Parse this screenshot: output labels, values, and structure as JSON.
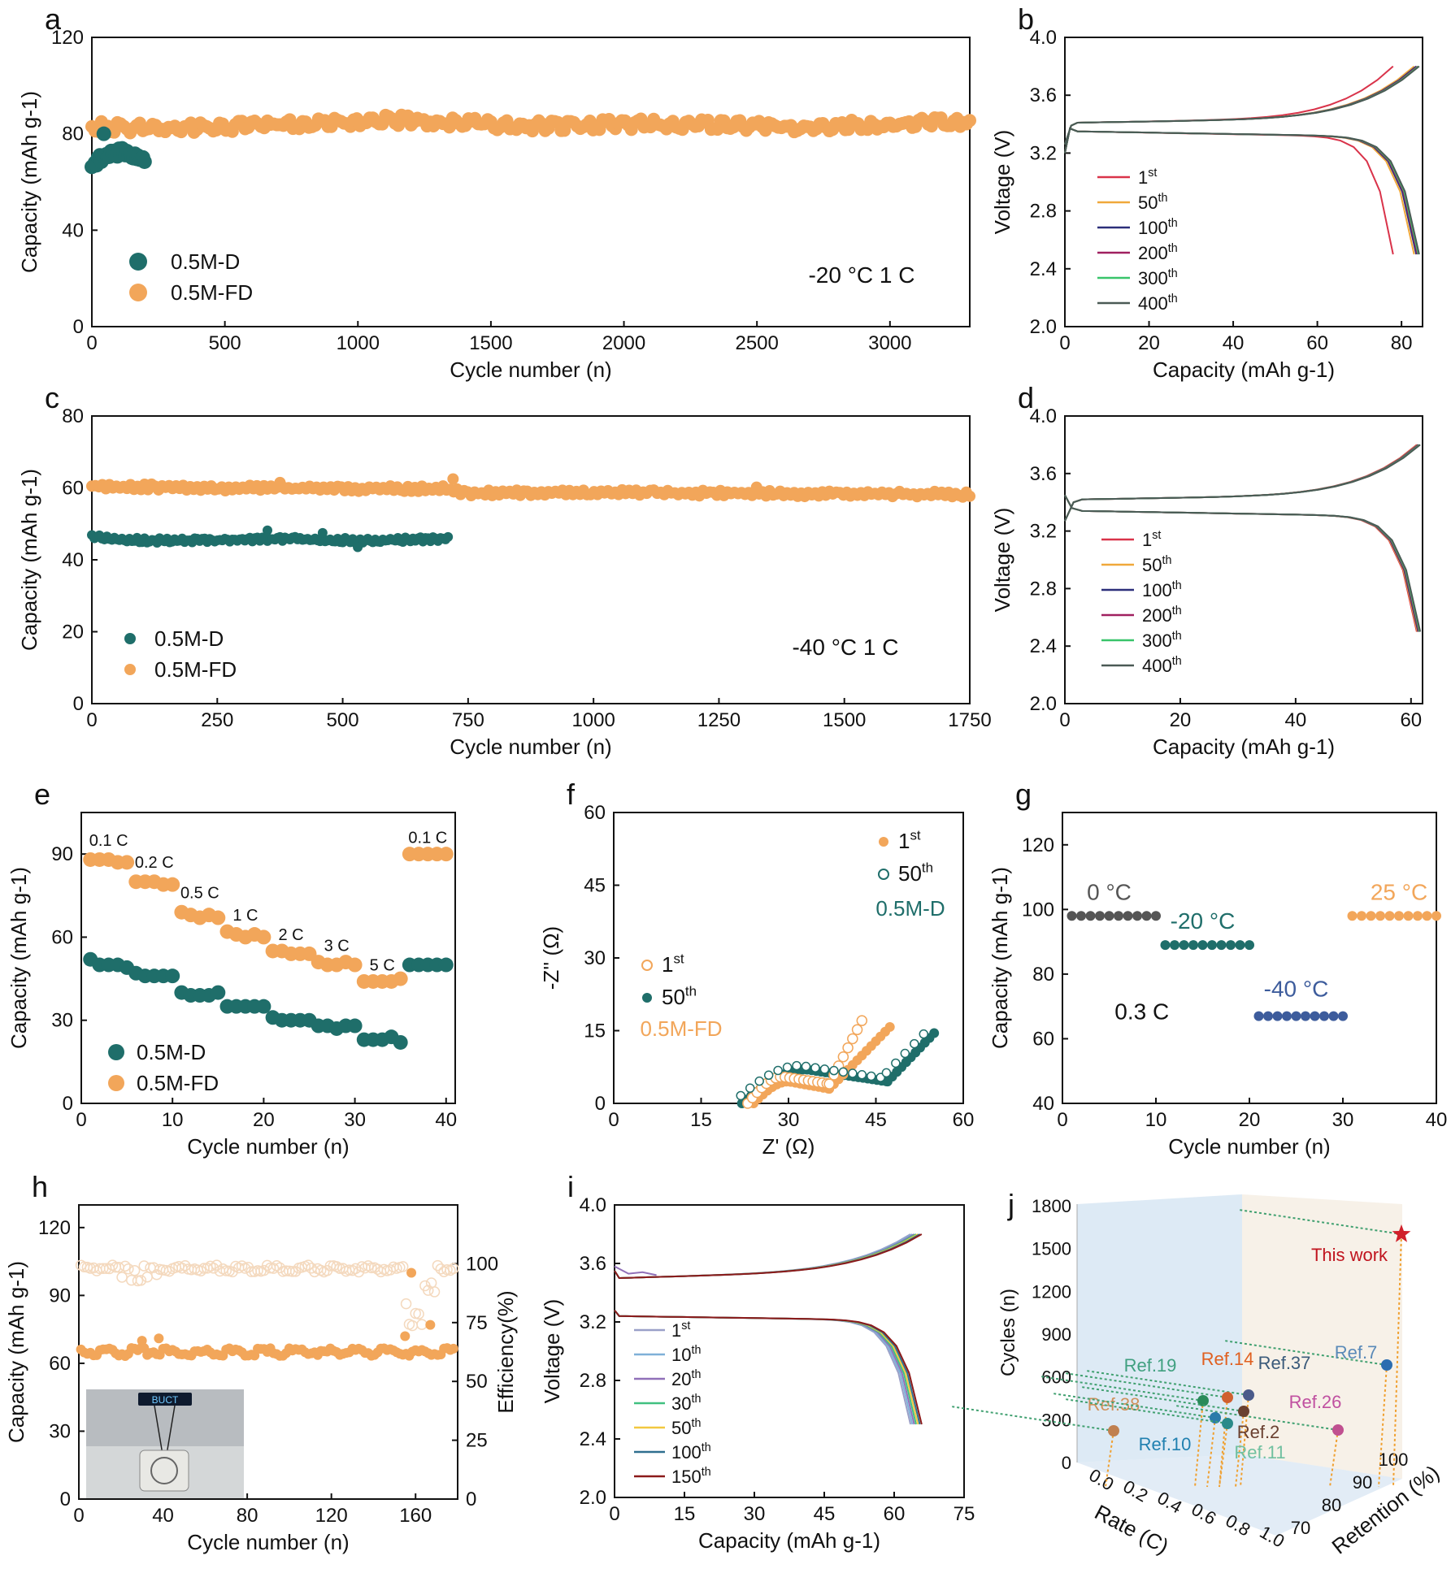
{
  "colors": {
    "teal": "#1f6e6a",
    "orange": "#f2a65a",
    "red": "#d9334a",
    "gold": "#f0a83a",
    "navy": "#2c2f7a",
    "magenta": "#a02060",
    "green": "#39c46a",
    "darkgray": "#4a5a55",
    "slate": "#3d5c9c",
    "gray": "#555555",
    "brown": "#7a1f16",
    "lavender": "#9aa0c8",
    "lightblue": "#7fb0d8",
    "purple": "#9070b8",
    "mint": "#40c080",
    "yellow": "#f2c840",
    "steel": "#2f6f8f",
    "maroon": "#8b1a1a"
  },
  "chart_data": [
    {
      "panel": "a",
      "type": "scatter",
      "letter": "a",
      "xlabel": "Cycle number (n)",
      "ylabel": "Capacity (mAh g-1)",
      "xlim": [
        0,
        3300
      ],
      "ylim": [
        0,
        120
      ],
      "xticks": [
        0,
        500,
        1000,
        1500,
        2000,
        2500,
        3000
      ],
      "yticks": [
        0,
        40,
        80,
        120
      ],
      "annotation": "-20 °C 1 C",
      "legend": [
        "0.5M-D",
        "0.5M-FD"
      ],
      "series": [
        {
          "name": "0.5M-D",
          "x": [
            0,
            25,
            50,
            75,
            100,
            125,
            150,
            175,
            200
          ],
          "y": [
            66,
            69,
            71,
            73,
            72,
            73,
            71,
            70,
            69
          ]
        },
        {
          "name": "0.5M-FD",
          "x": [
            0,
            250,
            500,
            750,
            1000,
            1100,
            1250,
            1500,
            1750,
            2000,
            2250,
            2500,
            2750,
            3000,
            3250,
            3300
          ],
          "y": [
            83,
            82,
            83,
            84,
            85,
            86,
            85,
            84,
            83,
            84,
            84,
            83,
            83,
            84,
            85,
            85
          ]
        }
      ]
    },
    {
      "panel": "b",
      "type": "line",
      "letter": "b",
      "xlabel": "Capacity (mAh g-1)",
      "ylabel": "Voltage (V)",
      "xlim": [
        0,
        85
      ],
      "ylim": [
        2.0,
        4.0
      ],
      "xticks": [
        0,
        20,
        40,
        60,
        80
      ],
      "yticks": [
        2.0,
        2.4,
        2.8,
        3.2,
        3.6,
        4.0
      ],
      "legend": [
        "1st",
        "50th",
        "100th",
        "200th",
        "300th",
        "400th"
      ],
      "endcap": [
        78,
        83,
        83.5,
        83.8,
        84,
        84.2
      ]
    },
    {
      "panel": "c",
      "type": "scatter",
      "letter": "c",
      "xlabel": "Cycle number (n)",
      "ylabel": "Capacity (mAh g-1)",
      "xlim": [
        0,
        1750
      ],
      "ylim": [
        0,
        80
      ],
      "xticks": [
        0,
        250,
        500,
        750,
        1000,
        1250,
        1500,
        1750
      ],
      "yticks": [
        0,
        20,
        40,
        60,
        80
      ],
      "annotation": "-40 °C 1 C",
      "legend": [
        "0.5M-D",
        "0.5M-FD"
      ],
      "series": [
        {
          "name": "0.5M-D",
          "x": [
            0,
            100,
            200,
            300,
            400,
            500,
            600,
            700
          ],
          "y": [
            46.5,
            45.5,
            45.3,
            45.5,
            45.8,
            45.4,
            45.6,
            45.7
          ]
        },
        {
          "name": "0.5M-FD",
          "x": [
            0,
            250,
            500,
            700,
            750,
            1000,
            1250,
            1500,
            1750
          ],
          "y": [
            60.5,
            60,
            59.8,
            59.8,
            58.5,
            58.8,
            58.5,
            58.3,
            58.2
          ]
        }
      ]
    },
    {
      "panel": "d",
      "type": "line",
      "letter": "d",
      "xlabel": "Capacity (mAh g-1)",
      "ylabel": "Voltage (V)",
      "xlim": [
        0,
        62
      ],
      "ylim": [
        2.0,
        4.0
      ],
      "xticks": [
        0,
        20,
        40,
        60
      ],
      "yticks": [
        2.0,
        2.4,
        2.8,
        3.2,
        3.6,
        4.0
      ],
      "legend": [
        "1st",
        "50th",
        "100th",
        "200th",
        "300th",
        "400th"
      ],
      "endcap": [
        61
      ]
    },
    {
      "panel": "e",
      "type": "scatter",
      "letter": "e",
      "xlabel": "Cycle number (n)",
      "ylabel": "Capacity (mAh g-1)",
      "xlim": [
        0,
        41
      ],
      "ylim": [
        0,
        105
      ],
      "xticks": [
        0,
        10,
        20,
        30,
        40
      ],
      "yticks": [
        0,
        30,
        60,
        90
      ],
      "rate_labels": [
        "0.1 C",
        "0.2 C",
        "0.5 C",
        "1 C",
        "2 C",
        "3 C",
        "5 C",
        "0.1 C"
      ],
      "legend": [
        "0.5M-D",
        "0.5M-FD"
      ],
      "series": [
        {
          "name": "0.5M-D",
          "y": [
            52,
            50,
            50,
            50,
            49,
            47,
            46,
            46,
            46,
            46,
            40,
            39,
            39,
            39,
            40,
            35,
            35,
            35,
            35,
            35,
            31,
            30,
            30,
            30,
            30,
            28,
            28,
            27,
            28,
            28,
            23,
            23,
            23,
            24,
            22,
            50,
            50,
            50,
            50,
            50
          ]
        },
        {
          "name": "0.5M-FD",
          "y": [
            88,
            88,
            88,
            87,
            87,
            80,
            80,
            80,
            79,
            79,
            69,
            68,
            67,
            68,
            67,
            62,
            61,
            60,
            61,
            60,
            55,
            55,
            54,
            54,
            54,
            51,
            50,
            50,
            51,
            50,
            44,
            44,
            44,
            44,
            45,
            90,
            90,
            90,
            90,
            90
          ]
        }
      ]
    },
    {
      "panel": "f",
      "type": "scatter",
      "letter": "f",
      "xlabel": "Z' (Ω)",
      "ylabel": "-Z'' (Ω)",
      "xlim": [
        0,
        60
      ],
      "ylim": [
        0,
        60
      ],
      "xticks": [
        0,
        15,
        30,
        45,
        60
      ],
      "yticks": [
        0,
        15,
        30,
        45,
        60
      ],
      "legend_top": [
        "1st",
        "50th",
        "0.5M-D"
      ],
      "legend_mid": [
        "1st",
        "50th",
        "0.5M-FD"
      ]
    },
    {
      "panel": "g",
      "type": "scatter",
      "letter": "g",
      "xlabel": "Cycle number (n)",
      "ylabel": "Capacity (mAh g-1)",
      "xlim": [
        0,
        40
      ],
      "ylim": [
        40,
        130
      ],
      "xticks": [
        0,
        10,
        20,
        30,
        40
      ],
      "yticks": [
        40,
        60,
        80,
        100,
        120
      ],
      "annotation": "0.3 C",
      "series": [
        {
          "name": "0 °C",
          "x_range": [
            1,
            10
          ],
          "y": 98
        },
        {
          "name": "-20 °C",
          "x_range": [
            11,
            20
          ],
          "y": 89
        },
        {
          "name": "-40 °C",
          "x_range": [
            21,
            30
          ],
          "y": 67
        },
        {
          "name": "25 °C",
          "x_range": [
            31,
            40
          ],
          "y": 98
        }
      ]
    },
    {
      "panel": "h",
      "type": "scatter",
      "letter": "h",
      "xlabel": "Cycle number (n)",
      "ylabel": "Capacity (mAh g-1)",
      "ylabel2": "Efficiency(%)",
      "xlim": [
        0,
        180
      ],
      "ylim": [
        0,
        130
      ],
      "xticks": [
        0,
        40,
        80,
        120,
        160
      ],
      "yticks": [
        0,
        30,
        60,
        90,
        120
      ],
      "yticks2": [
        0,
        25,
        50,
        75,
        100
      ],
      "inset_text": "BUCT"
    },
    {
      "panel": "i",
      "type": "line",
      "letter": "i",
      "xlabel": "Capacity (mAh g-1)",
      "ylabel": "Voltage (V)",
      "xlim": [
        0,
        75
      ],
      "ylim": [
        2.0,
        4.0
      ],
      "xticks": [
        0,
        15,
        30,
        45,
        60,
        75
      ],
      "yticks": [
        2.0,
        2.4,
        2.8,
        3.2,
        3.6,
        4.0
      ],
      "legend": [
        "1st",
        "10th",
        "20th",
        "30th",
        "50th",
        "100th",
        "150th"
      ]
    },
    {
      "panel": "j",
      "type": "scatter",
      "letter": "j",
      "xlabel": "Rate (C)",
      "ylabel": "Cycles (n)",
      "zlabel": "Retention (%)",
      "yticks": [
        0,
        300,
        600,
        900,
        1200,
        1500,
        1800
      ],
      "xticks": [
        "0.0",
        "0.2",
        "0.4",
        "0.6",
        "0.8",
        "1.0"
      ],
      "zticks": [
        "70",
        "80",
        "90",
        "100"
      ],
      "points": [
        {
          "name": "This work"
        },
        {
          "name": "Ref.7"
        },
        {
          "name": "Ref.37"
        },
        {
          "name": "Ref.14"
        },
        {
          "name": "Ref.19"
        },
        {
          "name": "Ref.26"
        },
        {
          "name": "Ref.38"
        },
        {
          "name": "Ref.10"
        },
        {
          "name": "Ref.2"
        },
        {
          "name": "Ref.11"
        }
      ]
    }
  ]
}
